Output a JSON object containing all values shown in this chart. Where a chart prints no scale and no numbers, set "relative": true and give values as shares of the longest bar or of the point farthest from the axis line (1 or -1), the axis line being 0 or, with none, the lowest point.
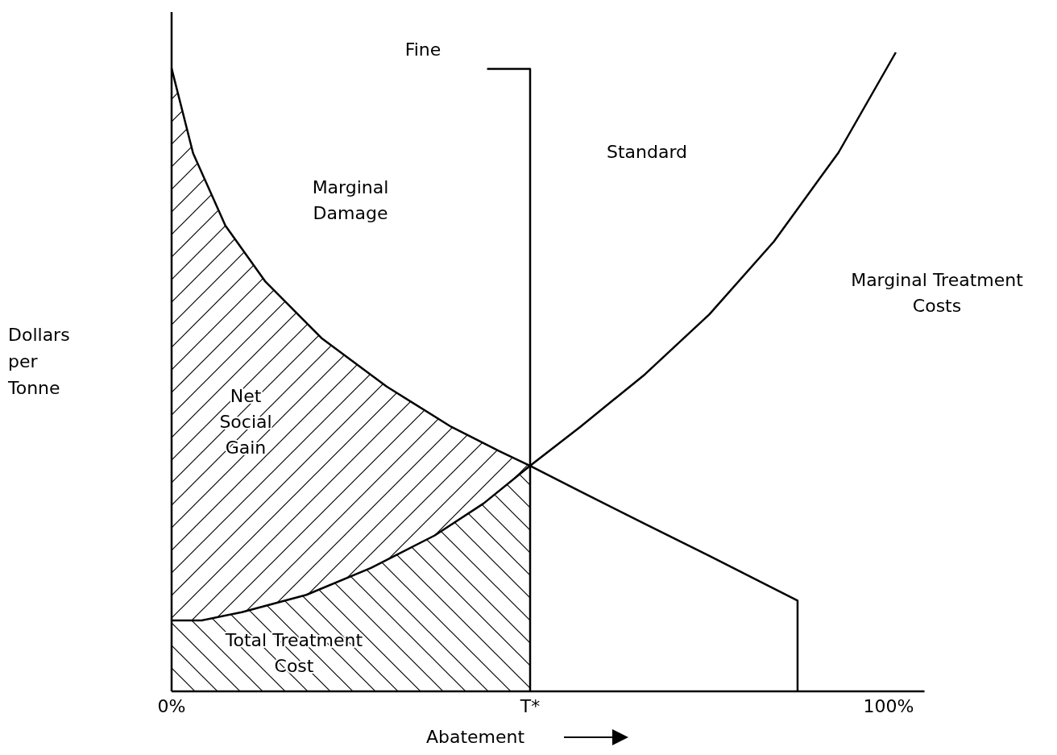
{
  "chart_data": {
    "type": "line",
    "relative": true,
    "xlabel": "Abatement",
    "ylabel": "Dollars\nper\nTonne",
    "xlim": [
      0,
      105
    ],
    "xticks": [
      {
        "value": 0,
        "label": "0%"
      },
      {
        "value": 50,
        "label": "T*"
      },
      {
        "value": 100,
        "label": "100%"
      }
    ],
    "grid": false,
    "legend": false,
    "marker": "none",
    "line_style": "solid",
    "series": [
      {
        "type": "area",
        "color": "#000000",
        "x": [
          0,
          3,
          7.5,
          13.1,
          21,
          30,
          39,
          45.7,
          50
        ],
        "values": [
          0.975,
          0.842,
          0.729,
          0.641,
          0.552,
          0.477,
          0.414,
          0.376,
          0.353
        ]
      },
      {
        "type": "area",
        "color": "#000000",
        "x": [
          0,
          4.2,
          9.8,
          18.8,
          27.8,
          36.7,
          43.5,
          50
        ],
        "values": [
          0.111,
          0.111,
          0.124,
          0.151,
          0.193,
          0.244,
          0.294,
          0.353
        ]
      },
      {
        "color": "#000000",
        "x": [
          0,
          3,
          7.5,
          13.1,
          21,
          30,
          39,
          45.7,
          50,
          57,
          66,
          75,
          81.7,
          87.3,
          87.3
        ],
        "values": [
          0.975,
          0.842,
          0.729,
          0.641,
          0.552,
          0.477,
          0.414,
          0.376,
          0.353,
          0.313,
          0.262,
          0.212,
          0.174,
          0.142,
          0
        ]
      },
      {
        "color": "#000000",
        "x": [
          0,
          4.2,
          9.8,
          18.8,
          27.8,
          36.7,
          43.5,
          50,
          57,
          66,
          75,
          84,
          93,
          101
        ],
        "values": [
          0.111,
          0.111,
          0.124,
          0.151,
          0.193,
          0.244,
          0.294,
          0.353,
          0.414,
          0.496,
          0.59,
          0.704,
          0.843,
          1
        ]
      },
      {
        "color": "#000000",
        "x": [
          44,
          50,
          50
        ],
        "values": [
          0.974,
          0.974,
          0
        ]
      }
    ],
    "annotations": [
      "Marginal\nDamage",
      "Net\nSocial\nGain",
      "Total Treatment\nCost",
      "Fine",
      "Standard",
      "Marginal Treatment\nCosts"
    ]
  }
}
